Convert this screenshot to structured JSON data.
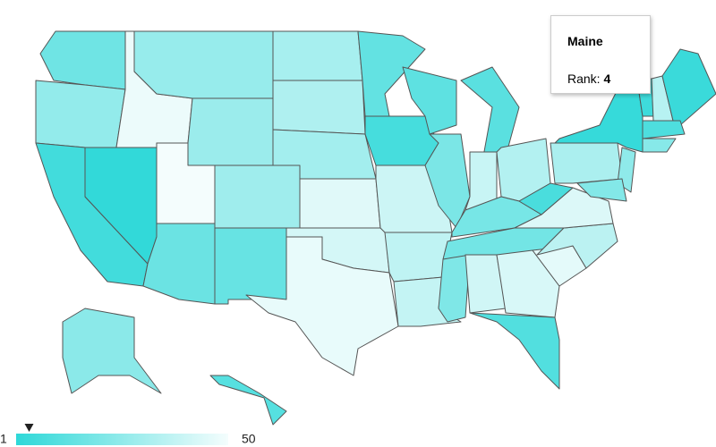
{
  "chart_data": {
    "type": "choropleth",
    "color_scale": {
      "min": 1,
      "max": 50,
      "colors": [
        "#2ed8d8",
        "#f4fdfd"
      ]
    },
    "tooltip": {
      "title": "Maine",
      "label": "Rank:",
      "rank": 4
    },
    "regions": [
      {
        "rank": 17
      },
      {
        "rank": 26
      },
      {
        "rank": 6
      },
      {
        "rank": 2
      },
      {
        "rank": 48
      },
      {
        "rank": 27
      },
      {
        "rank": 28
      },
      {
        "rank": 50
      },
      {
        "rank": 29
      },
      {
        "rank": 16
      },
      {
        "rank": 15
      },
      {
        "rank": 31
      },
      {
        "rank": 33
      },
      {
        "rank": 30
      },
      {
        "rank": 45
      },
      {
        "rank": 42
      },
      {
        "rank": 47
      },
      {
        "rank": 14
      },
      {
        "rank": 7
      },
      {
        "rank": 40
      },
      {
        "rank": 37
      },
      {
        "rank": 38
      },
      {
        "rank": 13
      },
      {
        "rank": 20
      },
      {
        "rank": 12
      },
      {
        "rank": 39
      },
      {
        "rank": 34
      },
      {
        "rank": 19
      },
      {
        "rank": 18
      },
      {
        "rank": 21
      },
      {
        "rank": 41
      },
      {
        "rank": 43
      },
      {
        "rank": 10
      },
      {
        "rank": 46
      },
      {
        "rank": 36
      },
      {
        "rank": 44
      },
      {
        "rank": 8
      },
      {
        "rank": 32
      },
      {
        "rank": 3
      },
      {
        "rank": 5
      },
      {
        "rank": 35
      },
      {
        "rank": 4
      },
      {
        "rank": 9
      },
      {
        "rank": 23
      },
      {
        "rank": 25
      },
      {
        "rank": 22
      },
      {
        "rank": 24
      },
      {
        "rank": 11
      }
    ]
  }
}
